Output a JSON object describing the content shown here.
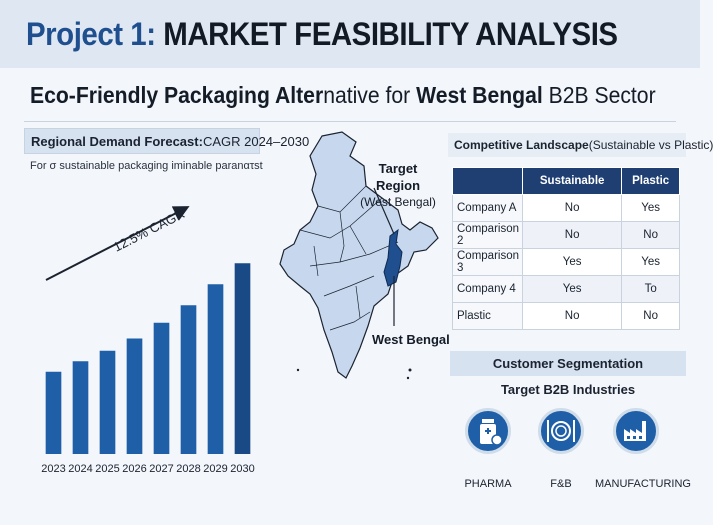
{
  "header": {
    "project": "Project 1:",
    "title": "MARKET FEASIBILITY ANALYSIS"
  },
  "subtitle": {
    "part1": "Eco-Friendly Packaging Alter",
    "part2": "native for ",
    "part3": "West Bengal",
    "part4": " B2B Sector"
  },
  "demand": {
    "heading_bold": "Regional Demand Forecast:",
    "heading_rest": " CAGR 2024–2030",
    "note": "For σ sustainable packaging iminable paranατst",
    "cagr_label": "12.5% CAGR"
  },
  "chart_data": {
    "type": "bar",
    "categories": [
      "2023",
      "2024",
      "2025",
      "2026",
      "2027",
      "2028",
      "2029",
      "2030"
    ],
    "values": [
      47,
      53,
      59,
      66,
      75,
      85,
      97,
      109
    ],
    "ylim": [
      0,
      120
    ],
    "grid": false,
    "annotation": "12.5% CAGR",
    "bar_color": "#1f5fa8"
  },
  "map": {
    "target_label": "Target Region",
    "target_sub": "(West Bengal)",
    "wb_label": "West Bengal",
    "fill": "#c7d8ee",
    "highlight": "#1f4f8f"
  },
  "competition": {
    "heading_bold": "Competitive Landscape",
    "heading_rest": " (Sustainable vs Plastic)",
    "columns": [
      "",
      "Sustainable",
      "Plastic"
    ],
    "rows": [
      [
        "Company A",
        "No",
        "Yes"
      ],
      [
        "Comparison 2",
        "No",
        "No"
      ],
      [
        "Comparison 3",
        "Yes",
        "Yes"
      ],
      [
        "Company 4",
        "Yes",
        "To"
      ],
      [
        "Plastic",
        "No",
        "No"
      ]
    ]
  },
  "segmentation": {
    "heading": "Customer Segmentation",
    "sub": "Target B2B Industries",
    "industries": [
      {
        "label": "PHARMA",
        "icon": "pharma-bottle-icon"
      },
      {
        "label": "F&B",
        "icon": "plate-cutlery-icon"
      },
      {
        "label": "MANUFACTURING",
        "icon": "factory-icon"
      }
    ],
    "icon_color": "#1f5fa8"
  }
}
